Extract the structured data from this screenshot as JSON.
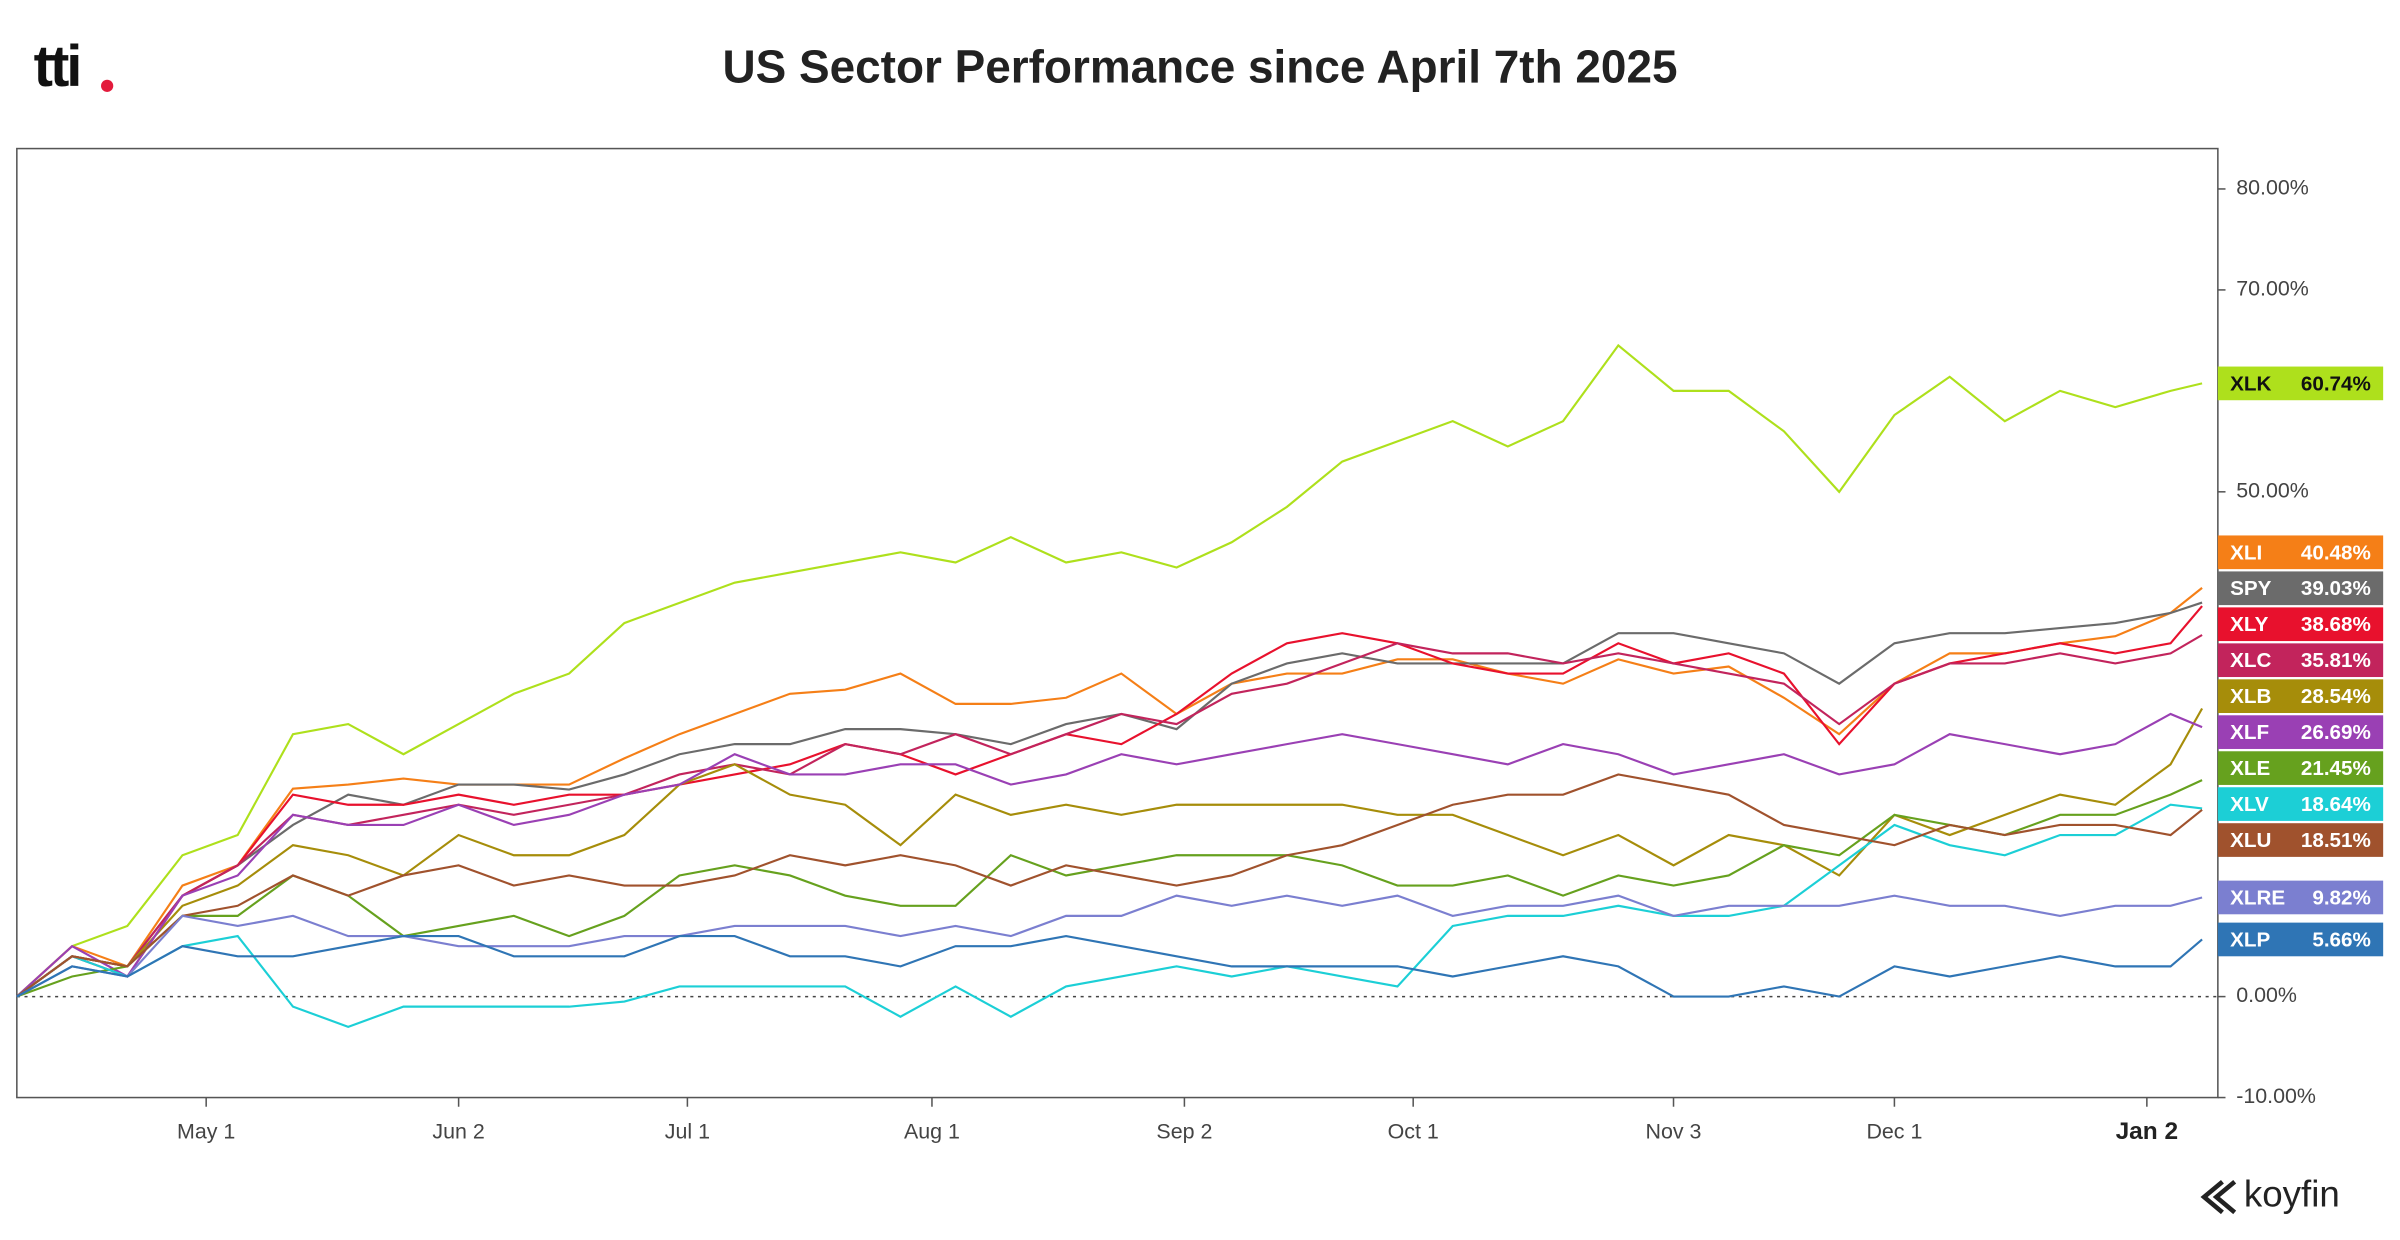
{
  "logo": "tti",
  "brand": "koyfin",
  "chart_data": {
    "type": "line",
    "title": "US Sector Performance since April 7th 2025",
    "x": [
      "Apr 7",
      "Apr 14",
      "Apr 21",
      "Apr 28",
      "May 5",
      "May 12",
      "May 19",
      "May 26",
      "Jun 2",
      "Jun 9",
      "Jun 16",
      "Jun 23",
      "Jun 30",
      "Jul 7",
      "Jul 14",
      "Jul 21",
      "Jul 28",
      "Aug 4",
      "Aug 11",
      "Aug 18",
      "Aug 25",
      "Sep 1",
      "Sep 8",
      "Sep 15",
      "Sep 22",
      "Sep 29",
      "Oct 6",
      "Oct 13",
      "Oct 20",
      "Oct 27",
      "Nov 3",
      "Nov 10",
      "Nov 17",
      "Nov 24",
      "Dec 1",
      "Dec 8",
      "Dec 15",
      "Dec 22",
      "Dec 29",
      "Jan 5",
      "Jan 9"
    ],
    "xlim": [
      "Apr 7",
      "Jan 11"
    ],
    "xticks": [
      "May 1",
      "Jun 2",
      "Jul 1",
      "Aug 1",
      "Sep 2",
      "Oct 1",
      "Nov 3",
      "Dec 1",
      "Jan 2"
    ],
    "ylim": [
      -10,
      84
    ],
    "yticks": [
      {
        "value": 80,
        "label": "80.00%"
      },
      {
        "value": 70,
        "label": "70.00%"
      },
      {
        "value": 50,
        "label": "50.00%"
      },
      {
        "value": 0,
        "label": "0.00%"
      },
      {
        "value": -10,
        "label": "-10.00%"
      }
    ],
    "zero_line": true,
    "series": [
      {
        "name": "XLK",
        "color": "#aee01c",
        "values": [
          0,
          5,
          7,
          14,
          16,
          26,
          27,
          24,
          27,
          30,
          32,
          37,
          39,
          41,
          42,
          43,
          44,
          43,
          45.5,
          43,
          44,
          42.5,
          45,
          48.5,
          53,
          55,
          57,
          54.5,
          57,
          64.5,
          60,
          60,
          56,
          50,
          57.6,
          61.4,
          57,
          60,
          58.4,
          60,
          60.74
        ],
        "value_labels": [
          null,
          null,
          null,
          null,
          null,
          null,
          null,
          null,
          null,
          null,
          null,
          null,
          null,
          null,
          null,
          null,
          null,
          null,
          null,
          null,
          null,
          null,
          null,
          null,
          null,
          null,
          null,
          null,
          null,
          null,
          null,
          null,
          null,
          null,
          null,
          null,
          null,
          null,
          null,
          null,
          "60.74%"
        ]
      },
      {
        "name": "XLI",
        "color": "#f57f17",
        "values": [
          0,
          5,
          3,
          11,
          13,
          20.6,
          21,
          21.6,
          21,
          21,
          21,
          23.6,
          26,
          28,
          30,
          30.4,
          32,
          29,
          29,
          29.6,
          32,
          28,
          31,
          32,
          32,
          33.4,
          33.4,
          32,
          31,
          33.4,
          32,
          32.7,
          29.6,
          26,
          31,
          34,
          34,
          35,
          35.7,
          38,
          40.48
        ],
        "value_labels": [
          null,
          null,
          null,
          null,
          null,
          null,
          null,
          null,
          null,
          null,
          null,
          null,
          null,
          null,
          null,
          null,
          null,
          null,
          null,
          null,
          null,
          null,
          null,
          null,
          null,
          null,
          null,
          null,
          null,
          null,
          null,
          null,
          null,
          null,
          null,
          null,
          null,
          null,
          null,
          null,
          "40.48%"
        ]
      },
      {
        "name": "SPY",
        "color": "#6b6b6b",
        "values": [
          0,
          4,
          3,
          10,
          13,
          17,
          20,
          19,
          21,
          21,
          20.5,
          22,
          24,
          25,
          25,
          26.5,
          26.5,
          26,
          25,
          27,
          28,
          26.5,
          31,
          33,
          34,
          33,
          33,
          33,
          33,
          36,
          36,
          35,
          34,
          31,
          35,
          36,
          36,
          36.5,
          37,
          38,
          39.03
        ],
        "value_labels": [
          null,
          null,
          null,
          null,
          null,
          null,
          null,
          null,
          null,
          null,
          null,
          null,
          null,
          null,
          null,
          null,
          null,
          null,
          null,
          null,
          null,
          null,
          null,
          null,
          null,
          null,
          null,
          null,
          null,
          null,
          null,
          null,
          null,
          null,
          null,
          null,
          null,
          null,
          null,
          null,
          "39.03%"
        ]
      },
      {
        "name": "XLY",
        "color": "#e8112d",
        "values": [
          0,
          4,
          2,
          10,
          13,
          20,
          19,
          19,
          20,
          19,
          20,
          20,
          21,
          22,
          23,
          25,
          24,
          22,
          24,
          26,
          25,
          28,
          32,
          35,
          36,
          35,
          33,
          32,
          32,
          35,
          33,
          34,
          32,
          25,
          31,
          33,
          34,
          35,
          34,
          35,
          38.68
        ],
        "value_labels": [
          null,
          null,
          null,
          null,
          null,
          null,
          null,
          null,
          null,
          null,
          null,
          null,
          null,
          null,
          null,
          null,
          null,
          null,
          null,
          null,
          null,
          null,
          null,
          null,
          null,
          null,
          null,
          null,
          null,
          null,
          null,
          null,
          null,
          null,
          null,
          null,
          null,
          null,
          null,
          null,
          "38.68%"
        ]
      },
      {
        "name": "XLC",
        "color": "#c2245c",
        "values": [
          0,
          4,
          3,
          10,
          13,
          18,
          17,
          18,
          19,
          18,
          19,
          20,
          22,
          23,
          22,
          25,
          24,
          26,
          24,
          26,
          28,
          27,
          30,
          31,
          33,
          35,
          34,
          34,
          33,
          34,
          33,
          32,
          31,
          27,
          31,
          33,
          33,
          34,
          33,
          34,
          35.81
        ],
        "value_labels": [
          null,
          null,
          null,
          null,
          null,
          null,
          null,
          null,
          null,
          null,
          null,
          null,
          null,
          null,
          null,
          null,
          null,
          null,
          null,
          null,
          null,
          null,
          null,
          null,
          null,
          null,
          null,
          null,
          null,
          null,
          null,
          null,
          null,
          null,
          null,
          null,
          null,
          null,
          null,
          null,
          "35.81%"
        ]
      },
      {
        "name": "XLB",
        "color": "#a68d0a",
        "values": [
          0,
          4,
          3,
          9,
          11,
          15,
          14,
          12,
          16,
          14,
          14,
          16,
          21,
          23,
          20,
          19,
          15,
          20,
          18,
          19,
          18,
          19,
          19,
          19,
          19,
          18,
          18,
          16,
          14,
          16,
          13,
          16,
          15,
          12,
          18,
          16,
          18,
          20,
          19,
          23,
          28.54
        ],
        "value_labels": [
          null,
          null,
          null,
          null,
          null,
          null,
          null,
          null,
          null,
          null,
          null,
          null,
          null,
          null,
          null,
          null,
          null,
          null,
          null,
          null,
          null,
          null,
          null,
          null,
          null,
          null,
          null,
          null,
          null,
          null,
          null,
          null,
          null,
          null,
          null,
          null,
          null,
          null,
          null,
          null,
          "28.54%"
        ]
      },
      {
        "name": "XLF",
        "color": "#9a40b4",
        "values": [
          0,
          5,
          2,
          10,
          12,
          18,
          17,
          17,
          19,
          17,
          18,
          20,
          21,
          24,
          22,
          22,
          23,
          23,
          21,
          22,
          24,
          23,
          24,
          25,
          26,
          25,
          24,
          23,
          25,
          24,
          22,
          23,
          24,
          22,
          23,
          26,
          25,
          24,
          25,
          28,
          26.69
        ],
        "value_labels": [
          null,
          null,
          null,
          null,
          null,
          null,
          null,
          null,
          null,
          null,
          null,
          null,
          null,
          null,
          null,
          null,
          null,
          null,
          null,
          null,
          null,
          null,
          null,
          null,
          null,
          null,
          null,
          null,
          null,
          null,
          null,
          null,
          null,
          null,
          null,
          null,
          null,
          null,
          null,
          null,
          "26.69%"
        ]
      },
      {
        "name": "XLE",
        "color": "#66a11e",
        "values": [
          0,
          2,
          3,
          8,
          8,
          12,
          10,
          6,
          7,
          8,
          6,
          8,
          12,
          13,
          12,
          10,
          9,
          9,
          14,
          12,
          13,
          14,
          14,
          14,
          13,
          11,
          11,
          12,
          10,
          12,
          11,
          12,
          15,
          14,
          18,
          17,
          16,
          18,
          18,
          20,
          21.45
        ],
        "value_labels": [
          null,
          null,
          null,
          null,
          null,
          null,
          null,
          null,
          null,
          null,
          null,
          null,
          null,
          null,
          null,
          null,
          null,
          null,
          null,
          null,
          null,
          null,
          null,
          null,
          null,
          null,
          null,
          null,
          null,
          null,
          null,
          null,
          null,
          null,
          null,
          null,
          null,
          null,
          null,
          null,
          "21.45%"
        ]
      },
      {
        "name": "XLV",
        "color": "#1ccfd6",
        "values": [
          0,
          4,
          2,
          5,
          6,
          -1,
          -3,
          -1,
          -1,
          -1,
          -1,
          -0.5,
          1,
          1,
          1,
          1,
          -2,
          1,
          -2,
          1,
          2,
          3,
          2,
          3,
          2,
          1,
          7,
          8,
          8,
          9,
          8,
          8,
          9,
          13,
          17,
          15,
          14,
          16,
          16,
          19,
          18.64
        ],
        "value_labels": [
          null,
          null,
          null,
          null,
          null,
          null,
          null,
          null,
          null,
          null,
          null,
          null,
          null,
          null,
          null,
          null,
          null,
          null,
          null,
          null,
          null,
          null,
          null,
          null,
          null,
          null,
          null,
          null,
          null,
          null,
          null,
          null,
          null,
          null,
          null,
          null,
          null,
          null,
          null,
          null,
          "18.64%"
        ]
      },
      {
        "name": "XLU",
        "color": "#a0522d",
        "values": [
          0,
          4,
          3,
          8,
          9,
          12,
          10,
          12,
          13,
          11,
          12,
          11,
          11,
          12,
          14,
          13,
          14,
          13,
          11,
          13,
          12,
          11,
          12,
          14,
          15,
          17,
          19,
          20,
          20,
          22,
          21,
          20,
          17,
          16,
          15,
          17,
          16,
          17,
          17,
          16,
          18.51
        ],
        "value_labels": [
          null,
          null,
          null,
          null,
          null,
          null,
          null,
          null,
          null,
          null,
          null,
          null,
          null,
          null,
          null,
          null,
          null,
          null,
          null,
          null,
          null,
          null,
          null,
          null,
          null,
          null,
          null,
          null,
          null,
          null,
          null,
          null,
          null,
          null,
          null,
          null,
          null,
          null,
          null,
          null,
          "18.51%"
        ]
      },
      {
        "name": "XLRE",
        "color": "#7b7fd0",
        "values": [
          0,
          3,
          2,
          8,
          7,
          8,
          6,
          6,
          5,
          5,
          5,
          6,
          6,
          7,
          7,
          7,
          6,
          7,
          6,
          8,
          8,
          10,
          9,
          10,
          9,
          10,
          8,
          9,
          9,
          10,
          8,
          9,
          9,
          9,
          10,
          9,
          9,
          8,
          9,
          9,
          9.82
        ],
        "value_labels": [
          null,
          null,
          null,
          null,
          null,
          null,
          null,
          null,
          null,
          null,
          null,
          null,
          null,
          null,
          null,
          null,
          null,
          null,
          null,
          null,
          null,
          null,
          null,
          null,
          null,
          null,
          null,
          null,
          null,
          null,
          null,
          null,
          null,
          null,
          null,
          null,
          null,
          null,
          null,
          null,
          "9.82%"
        ]
      },
      {
        "name": "XLP",
        "color": "#2f75b5",
        "values": [
          0,
          3,
          2,
          5,
          4,
          4,
          5,
          6,
          6,
          4,
          4,
          4,
          6,
          6,
          4,
          4,
          3,
          5,
          5,
          6,
          5,
          4,
          3,
          3,
          3,
          3,
          2,
          3,
          4,
          3,
          0,
          0,
          1,
          0,
          3,
          2,
          3,
          4,
          3,
          3,
          5.66
        ],
        "value_labels": [
          null,
          null,
          null,
          null,
          null,
          null,
          null,
          null,
          null,
          null,
          null,
          null,
          null,
          null,
          null,
          null,
          null,
          null,
          null,
          null,
          null,
          null,
          null,
          null,
          null,
          null,
          null,
          null,
          null,
          null,
          null,
          null,
          null,
          null,
          null,
          null,
          null,
          null,
          null,
          null,
          "5.66%"
        ]
      }
    ]
  }
}
